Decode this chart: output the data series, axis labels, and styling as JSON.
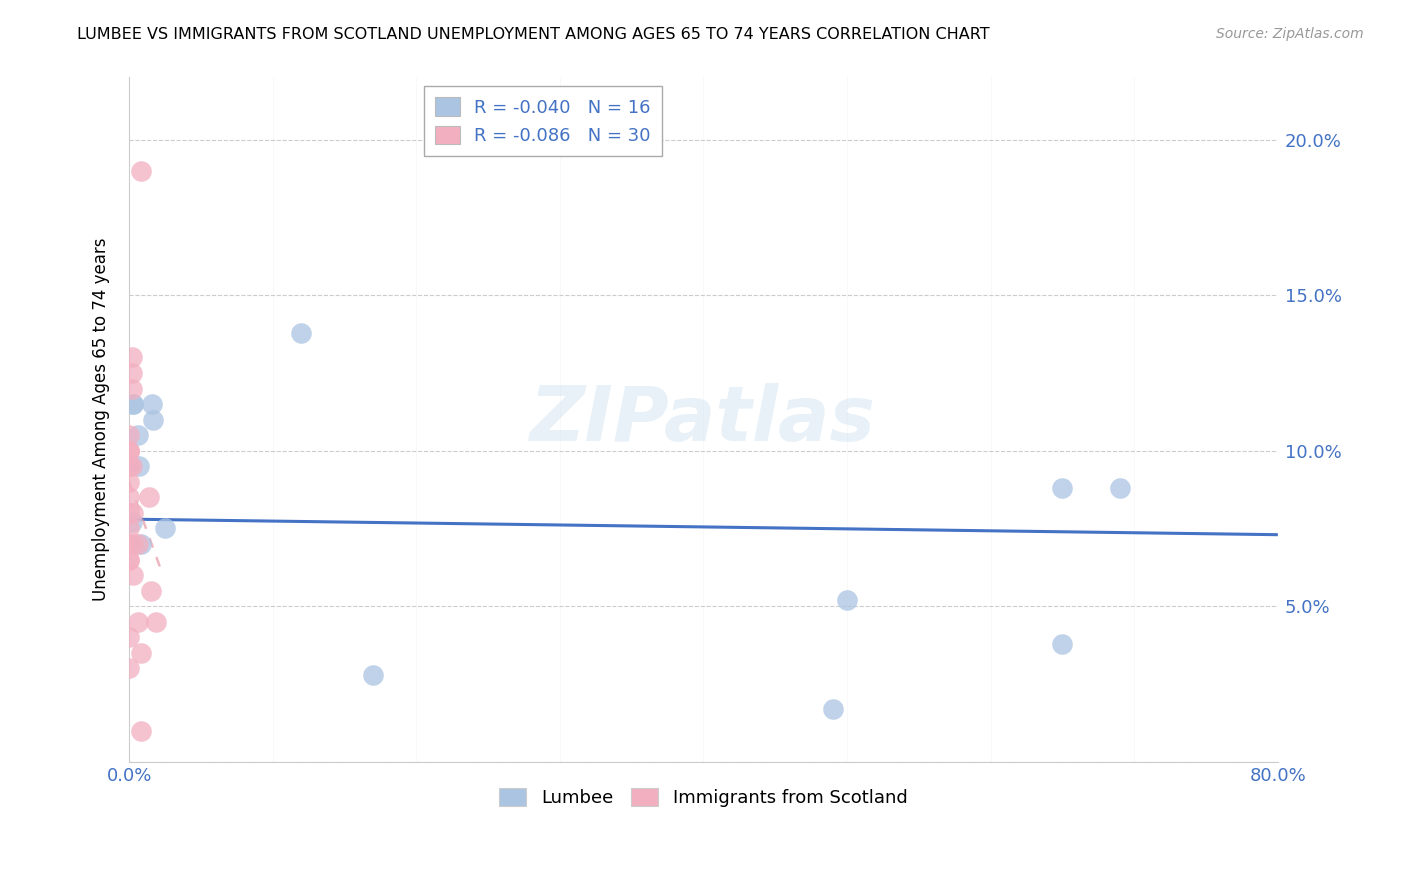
{
  "title": "LUMBEE VS IMMIGRANTS FROM SCOTLAND UNEMPLOYMENT AMONG AGES 65 TO 74 YEARS CORRELATION CHART",
  "source": "Source: ZipAtlas.com",
  "ylabel": "Unemployment Among Ages 65 to 74 years",
  "xlim": [
    0,
    0.8
  ],
  "ylim": [
    0,
    0.22
  ],
  "yticks": [
    0.0,
    0.05,
    0.1,
    0.15,
    0.2
  ],
  "ytick_labels": [
    "",
    "5.0%",
    "10.0%",
    "15.0%",
    "20.0%"
  ],
  "watermark": "ZIPatlas",
  "lumbee_color": "#aac4e2",
  "scotland_color": "#f2afc0",
  "lumbee_line_color": "#4472c4",
  "lumbee_R": -0.04,
  "lumbee_N": 16,
  "scotland_R": -0.086,
  "scotland_N": 30,
  "lumbee_points_x": [
    0.002,
    0.003,
    0.003,
    0.006,
    0.007,
    0.008,
    0.016,
    0.017,
    0.025,
    0.12,
    0.17,
    0.49,
    0.5,
    0.65,
    0.65,
    0.69
  ],
  "lumbee_points_y": [
    0.077,
    0.115,
    0.115,
    0.105,
    0.095,
    0.07,
    0.115,
    0.11,
    0.075,
    0.138,
    0.028,
    0.017,
    0.052,
    0.088,
    0.038,
    0.088
  ],
  "scotland_points_x": [
    0.0,
    0.0,
    0.0,
    0.0,
    0.0,
    0.0,
    0.0,
    0.0,
    0.0,
    0.0,
    0.0,
    0.0,
    0.0,
    0.0,
    0.0,
    0.002,
    0.002,
    0.002,
    0.002,
    0.003,
    0.003,
    0.003,
    0.006,
    0.006,
    0.008,
    0.008,
    0.008,
    0.014,
    0.015,
    0.019
  ],
  "scotland_points_y": [
    0.065,
    0.075,
    0.08,
    0.085,
    0.09,
    0.095,
    0.095,
    0.1,
    0.1,
    0.1,
    0.105,
    0.065,
    0.07,
    0.04,
    0.03,
    0.13,
    0.125,
    0.12,
    0.095,
    0.08,
    0.07,
    0.06,
    0.07,
    0.045,
    0.01,
    0.035,
    0.19,
    0.085,
    0.055,
    0.045
  ],
  "lumbee_trend_x": [
    0.0,
    0.8
  ],
  "lumbee_trend_y": [
    0.078,
    0.073
  ],
  "scotland_trend_x": [
    0.0,
    0.022
  ],
  "scotland_trend_y": [
    0.09,
    0.062
  ]
}
